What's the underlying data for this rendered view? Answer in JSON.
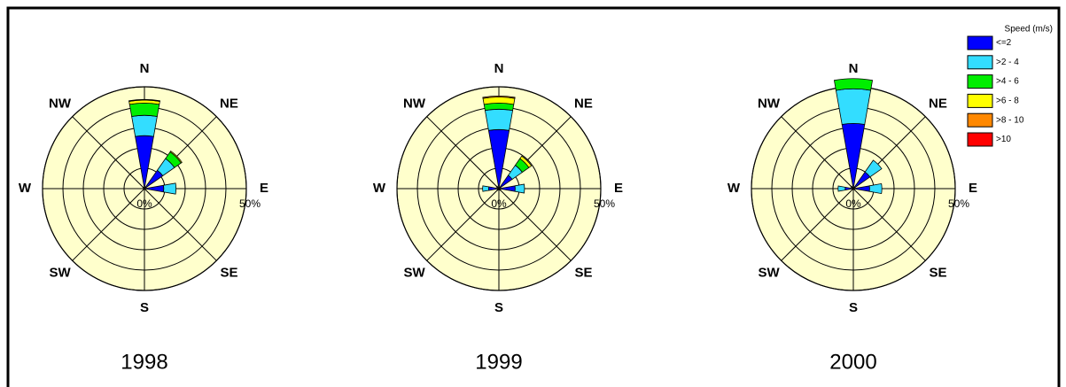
{
  "chart_data": [
    {
      "type": "windrose",
      "title": "1998",
      "categories": [
        "N",
        "NE",
        "E",
        "SE",
        "S",
        "SW",
        "W",
        "NW"
      ],
      "rlim": [
        0,
        50
      ],
      "rgrid": [
        10,
        20,
        30,
        40,
        50
      ],
      "rticks": [
        {
          "value": 0,
          "label": "0%"
        },
        {
          "value": 50,
          "label": "50%"
        }
      ],
      "series": [
        {
          "name": "<=2",
          "color": "#0000ff",
          "values": [
            26,
            11,
            9.5,
            0.5,
            0.3,
            0.3,
            0.5,
            0.8
          ]
        },
        {
          "name": ">2 - 4",
          "color": "#33ddff",
          "values": [
            10,
            7,
            6,
            0,
            0,
            0,
            0,
            0
          ]
        },
        {
          "name": ">4 - 6",
          "color": "#00ee00",
          "values": [
            6,
            4,
            0,
            0,
            0,
            0,
            0,
            0
          ]
        },
        {
          "name": ">6 - 8",
          "color": "#ffff00",
          "values": [
            1.5,
            0.5,
            0,
            0,
            0,
            0,
            0,
            0
          ]
        },
        {
          "name": ">8 - 10",
          "color": "#ff8800",
          "values": [
            0.3,
            0,
            0,
            0,
            0,
            0,
            0,
            0
          ]
        },
        {
          "name": ">10",
          "color": "#ff0000",
          "values": [
            0,
            0,
            0,
            0,
            0,
            0,
            0,
            0
          ]
        }
      ]
    },
    {
      "type": "windrose",
      "title": "1999",
      "categories": [
        "N",
        "NE",
        "E",
        "SE",
        "S",
        "SW",
        "W",
        "NW"
      ],
      "rlim": [
        0,
        50
      ],
      "rgrid": [
        10,
        20,
        30,
        40,
        50
      ],
      "rticks": [
        {
          "value": 0,
          "label": "0%"
        },
        {
          "value": 50,
          "label": "50%"
        }
      ],
      "series": [
        {
          "name": "<=2",
          "color": "#0000ff",
          "values": [
            29,
            8,
            8,
            1,
            0.5,
            1,
            5,
            1.5
          ]
        },
        {
          "name": ">2 - 4",
          "color": "#33ddff",
          "values": [
            10,
            6,
            4.6,
            0,
            0,
            0,
            3,
            0
          ]
        },
        {
          "name": ">4 - 6",
          "color": "#00ee00",
          "values": [
            3,
            4,
            0,
            0,
            0,
            0,
            0,
            0
          ]
        },
        {
          "name": ">6 - 8",
          "color": "#ffff00",
          "values": [
            3,
            1.5,
            0,
            0,
            0,
            0,
            0,
            0
          ]
        },
        {
          "name": ">8 - 10",
          "color": "#ff8800",
          "values": [
            0.5,
            0,
            0,
            0,
            0,
            0,
            0,
            0
          ]
        },
        {
          "name": ">10",
          "color": "#ff0000",
          "values": [
            0,
            0,
            0,
            0,
            0,
            0,
            0,
            0
          ]
        }
      ]
    },
    {
      "type": "windrose",
      "title": "2000",
      "categories": [
        "N",
        "NE",
        "E",
        "SE",
        "S",
        "SW",
        "W",
        "NW"
      ],
      "rlim": [
        0,
        50
      ],
      "rgrid": [
        10,
        20,
        30,
        40,
        50
      ],
      "rticks": [
        {
          "value": 0,
          "label": "0%"
        },
        {
          "value": 50,
          "label": "50%"
        }
      ],
      "series": [
        {
          "name": "<=2",
          "color": "#0000ff",
          "values": [
            32,
            10,
            8,
            0.5,
            0.3,
            0.5,
            4,
            1.5
          ]
        },
        {
          "name": ">2 - 4",
          "color": "#33ddff",
          "values": [
            17,
            7,
            6,
            0,
            0,
            0,
            3.5,
            0
          ]
        },
        {
          "name": ">4 - 6",
          "color": "#00ee00",
          "values": [
            5,
            0,
            0,
            0,
            0,
            0,
            0,
            0
          ]
        },
        {
          "name": ">6 - 8",
          "color": "#ffff00",
          "values": [
            0,
            0,
            0,
            0,
            0,
            0,
            0,
            0
          ]
        },
        {
          "name": ">8 - 10",
          "color": "#ff8800",
          "values": [
            0,
            0,
            0,
            0,
            0,
            0,
            0,
            0
          ]
        },
        {
          "name": ">10",
          "color": "#ff0000",
          "values": [
            0,
            0,
            0,
            0,
            0,
            0,
            0,
            0
          ]
        }
      ],
      "legend_title": "Speed (m/s)"
    }
  ]
}
